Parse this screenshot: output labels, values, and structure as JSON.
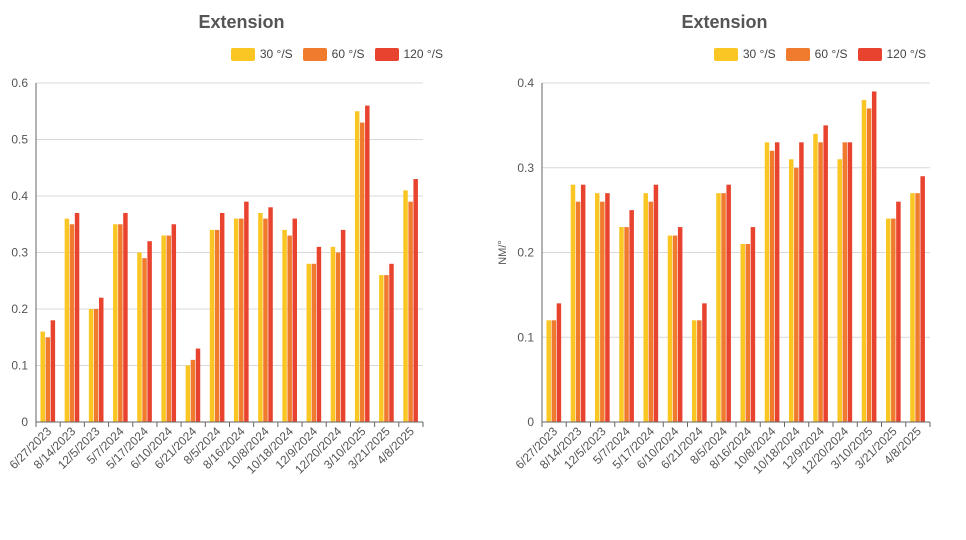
{
  "chart_data": [
    {
      "type": "bar",
      "title": "Extension",
      "ylabel": "",
      "xlabel": "",
      "ylim": [
        0,
        0.6
      ],
      "yticks": [
        "0",
        "0.1",
        "0.2",
        "0.3",
        "0.4",
        "0.5",
        "0.6"
      ],
      "categories": [
        "6/27/2023",
        "8/14/2023",
        "12/5/2023",
        "5/7/2024",
        "5/17/2024",
        "6/10/2024",
        "6/21/2024",
        "8/5/2024",
        "8/16/2024",
        "10/8/2024",
        "10/18/2024",
        "12/9/2024",
        "12/20/2024",
        "3/10/2025",
        "3/21/2025",
        "4/8/2025"
      ],
      "series": [
        {
          "name": "30 °/S",
          "color": "#f9c623",
          "values": [
            0.16,
            0.36,
            0.2,
            0.35,
            0.3,
            0.33,
            0.1,
            0.34,
            0.36,
            0.37,
            0.34,
            0.28,
            0.31,
            0.55,
            0.26,
            0.41
          ]
        },
        {
          "name": "60 °/S",
          "color": "#f07b2e",
          "values": [
            0.15,
            0.35,
            0.2,
            0.35,
            0.29,
            0.33,
            0.11,
            0.34,
            0.36,
            0.36,
            0.33,
            0.28,
            0.3,
            0.53,
            0.26,
            0.39
          ]
        },
        {
          "name": "120 °/S",
          "color": "#e8432f",
          "values": [
            0.18,
            0.37,
            0.22,
            0.37,
            0.32,
            0.35,
            0.13,
            0.37,
            0.39,
            0.38,
            0.36,
            0.31,
            0.34,
            0.56,
            0.28,
            0.43
          ]
        }
      ],
      "grid": true,
      "legend_position": "top-right"
    },
    {
      "type": "bar",
      "title": "Extension",
      "ylabel": "NM/°",
      "xlabel": "",
      "ylim": [
        0,
        0.4
      ],
      "yticks": [
        "0",
        "0.1",
        "0.2",
        "0.3",
        "0.4"
      ],
      "categories": [
        "6/27/2023",
        "8/14/2023",
        "12/5/2023",
        "5/7/2024",
        "5/17/2024",
        "6/10/2024",
        "6/21/2024",
        "8/5/2024",
        "8/16/2024",
        "10/8/2024",
        "10/18/2024",
        "12/9/2024",
        "12/20/2024",
        "3/10/2025",
        "3/21/2025",
        "4/8/2025"
      ],
      "series": [
        {
          "name": "30 °/S",
          "color": "#f9c623",
          "values": [
            0.12,
            0.28,
            0.27,
            0.23,
            0.27,
            0.22,
            0.12,
            0.27,
            0.21,
            0.33,
            0.31,
            0.34,
            0.31,
            0.38,
            0.24,
            0.27
          ]
        },
        {
          "name": "60 °/S",
          "color": "#f07b2e",
          "values": [
            0.12,
            0.26,
            0.26,
            0.23,
            0.26,
            0.22,
            0.12,
            0.27,
            0.21,
            0.32,
            0.3,
            0.33,
            0.33,
            0.37,
            0.24,
            0.27
          ]
        },
        {
          "name": "120 °/S",
          "color": "#e8432f",
          "values": [
            0.14,
            0.28,
            0.27,
            0.25,
            0.28,
            0.23,
            0.14,
            0.28,
            0.23,
            0.33,
            0.33,
            0.35,
            0.33,
            0.39,
            0.26,
            0.29
          ]
        }
      ],
      "grid": true,
      "legend_position": "top-right"
    }
  ]
}
